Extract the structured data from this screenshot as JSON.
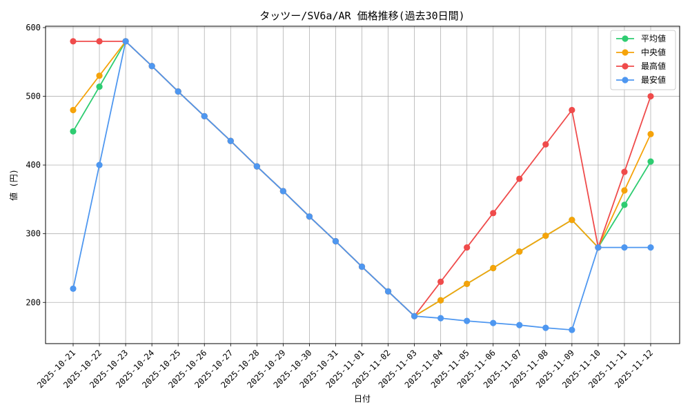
{
  "chart_data": {
    "type": "line",
    "title": "タッツー/SV6a/AR 価格推移(過去30日間)",
    "xlabel": "日付",
    "ylabel": "値 (円)",
    "categories": [
      "2025-10-21",
      "2025-10-22",
      "2025-10-23",
      "2025-10-24",
      "2025-10-25",
      "2025-10-26",
      "2025-10-27",
      "2025-10-28",
      "2025-10-29",
      "2025-10-30",
      "2025-10-31",
      "2025-11-01",
      "2025-11-02",
      "2025-11-03",
      "2025-11-04",
      "2025-11-05",
      "2025-11-06",
      "2025-11-07",
      "2025-11-08",
      "2025-11-09",
      "2025-11-10",
      "2025-11-11",
      "2025-11-12"
    ],
    "ylim": [
      140,
      602
    ],
    "yticks": [
      200,
      300,
      400,
      500,
      600
    ],
    "grid": true,
    "legend_position": "top-right",
    "series": [
      {
        "name": "平均値",
        "color": "#2ecc71",
        "values": [
          449,
          514,
          580,
          544,
          507,
          471,
          435,
          398,
          362,
          325,
          289,
          252,
          216,
          180,
          203,
          227,
          250,
          274,
          297,
          320,
          280,
          342,
          405
        ]
      },
      {
        "name": "中央値",
        "color": "#f5a30a",
        "values": [
          480,
          530,
          580,
          544,
          507,
          471,
          435,
          398,
          362,
          325,
          289,
          252,
          216,
          180,
          203,
          227,
          250,
          274,
          297,
          320,
          280,
          363,
          445
        ]
      },
      {
        "name": "最高値",
        "color": "#ef4b4b",
        "values": [
          580,
          580,
          580,
          544,
          507,
          471,
          435,
          398,
          362,
          325,
          289,
          252,
          216,
          180,
          230,
          280,
          330,
          380,
          430,
          480,
          280,
          390,
          500
        ]
      },
      {
        "name": "最安値",
        "color": "#4e97f0",
        "values": [
          220,
          400,
          580,
          544,
          507,
          471,
          435,
          398,
          362,
          325,
          289,
          252,
          216,
          180,
          177,
          173,
          170,
          167,
          163,
          160,
          280,
          280,
          280
        ]
      }
    ]
  }
}
